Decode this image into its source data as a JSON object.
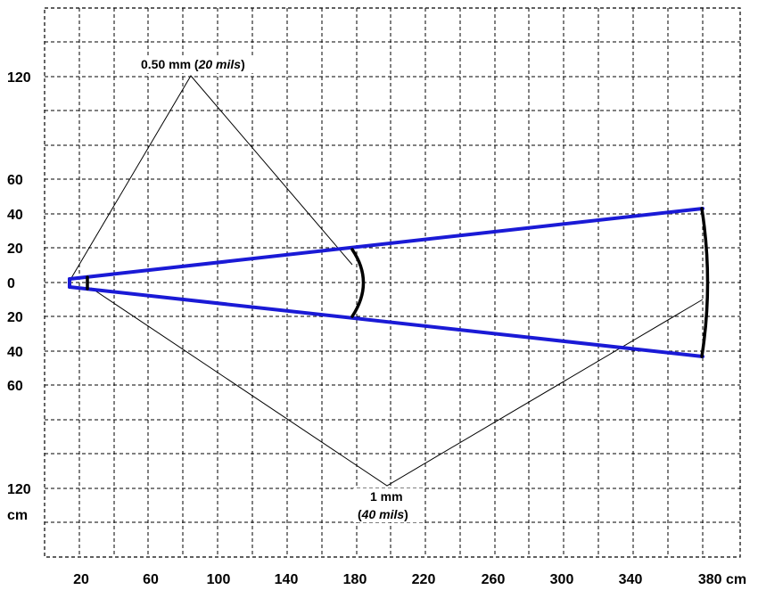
{
  "chart_data": {
    "type": "scan-range-diagram",
    "x_ticks": [
      "20",
      "60",
      "100",
      "140",
      "180",
      "220",
      "260",
      "300",
      "340",
      "380 cm"
    ],
    "y_ticks": [
      "120",
      "60",
      "40",
      "20",
      "0",
      "20",
      "40",
      "60",
      "120",
      "cm"
    ],
    "annotations": [
      {
        "id": "label_050mm",
        "text_main": "0.50 mm (",
        "text_italic": "20 mils",
        "text_close": ")"
      },
      {
        "id": "label_1mm_line1",
        "text": "1 mm"
      },
      {
        "id": "label_1mm_line2",
        "text_open": "(",
        "text_italic": "40 mils",
        "text_close": ")"
      }
    ],
    "zones": [
      {
        "label": "0.50 mm (20 mils)",
        "near_cm": 25,
        "far_cm": 185,
        "max_width_cm": 120
      },
      {
        "label": "1 mm (40 mils)",
        "near_cm": 25,
        "far_cm": 385,
        "max_width_cm": 120
      }
    ],
    "scan_beam": {
      "origin_cm": 15,
      "far_cm": 380,
      "half_width_at_far_cm": 43
    }
  },
  "colors": {
    "beam": "#1a1ad6",
    "grid": "#000000",
    "background": "#ffffff"
  }
}
